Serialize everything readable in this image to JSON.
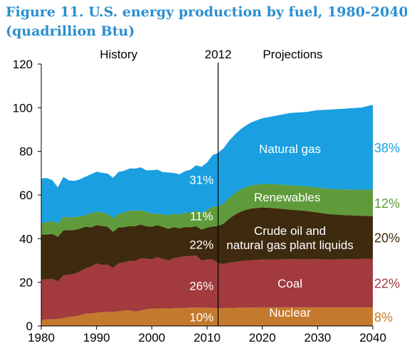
{
  "title": {
    "line1": "Figure 11. U.S. energy production by fuel, 1980-2040",
    "line2": "(quadrillion Btu)"
  },
  "chart_data": {
    "type": "area",
    "title": "Figure 11. U.S. energy production by fuel, 1980-2040 (quadrillion Btu)",
    "xlabel": "",
    "ylabel": "",
    "xlim": [
      1980,
      2040
    ],
    "ylim": [
      0,
      120
    ],
    "x_ticks": [
      "1980",
      "1990",
      "2000",
      "2010",
      "2020",
      "2030",
      "2040"
    ],
    "y_ticks": [
      "0",
      "20",
      "40",
      "60",
      "80",
      "100",
      "120"
    ],
    "grid": false,
    "stacked": true,
    "divider": {
      "x": 2012,
      "label": "2012",
      "left_label": "History",
      "right_label": "Projections"
    },
    "x": [
      1980,
      1981,
      1982,
      1983,
      1984,
      1985,
      1986,
      1987,
      1988,
      1989,
      1990,
      1991,
      1992,
      1993,
      1994,
      1995,
      1996,
      1997,
      1998,
      1999,
      2000,
      2001,
      2002,
      2003,
      2004,
      2005,
      2006,
      2007,
      2008,
      2009,
      2010,
      2011,
      2012,
      2013,
      2014,
      2015,
      2016,
      2017,
      2018,
      2020,
      2022,
      2025,
      2028,
      2030,
      2032,
      2035,
      2038,
      2040
    ],
    "series": [
      {
        "name": "Nuclear",
        "color": "#c47a2c",
        "share_2012": "10%",
        "share_2040": "8%",
        "values": [
          2.7,
          3.0,
          3.1,
          3.2,
          3.6,
          4.1,
          4.4,
          4.9,
          5.6,
          5.7,
          6.1,
          6.4,
          6.5,
          6.4,
          6.7,
          7.1,
          7.1,
          6.6,
          7.1,
          7.6,
          7.9,
          8.0,
          8.1,
          7.9,
          8.2,
          8.2,
          8.2,
          8.5,
          8.4,
          8.4,
          8.4,
          8.3,
          8.1,
          8.2,
          8.3,
          8.3,
          8.4,
          8.4,
          8.4,
          8.5,
          8.5,
          8.5,
          8.5,
          8.5,
          8.5,
          8.5,
          8.5,
          8.5
        ]
      },
      {
        "name": "Coal",
        "color": "#a23a3e",
        "share_2012": "26%",
        "share_2040": "22%",
        "values": [
          18.6,
          18.4,
          18.6,
          17.2,
          19.7,
          19.3,
          19.5,
          20.1,
          20.7,
          21.4,
          22.5,
          21.6,
          21.6,
          20.2,
          22.1,
          22.0,
          22.7,
          23.2,
          23.9,
          23.2,
          22.7,
          23.5,
          22.6,
          22.1,
          22.9,
          23.2,
          23.8,
          23.5,
          23.9,
          21.6,
          22.0,
          22.2,
          20.7,
          20.2,
          20.7,
          21.0,
          21.3,
          21.5,
          21.7,
          21.9,
          22.0,
          22.1,
          22.2,
          22.1,
          22.0,
          22.1,
          22.2,
          22.3
        ]
      },
      {
        "name": "Crude oil and natural gas plant liquids",
        "color": "#3e2a0e",
        "share_2012": "22%",
        "share_2040": "20%",
        "values": [
          20.5,
          20.5,
          20.5,
          20.5,
          20.5,
          20.5,
          20.1,
          19.6,
          19.2,
          18.1,
          17.6,
          17.8,
          17.4,
          16.5,
          16.4,
          16.2,
          16.0,
          15.9,
          15.5,
          14.9,
          14.9,
          14.7,
          14.7,
          14.5,
          14.2,
          13.3,
          13.3,
          13.3,
          13.4,
          14.2,
          14.7,
          15.1,
          17.1,
          18.5,
          20.2,
          21.6,
          22.6,
          23.3,
          23.7,
          23.9,
          23.5,
          22.7,
          22.0,
          21.4,
          20.8,
          20.2,
          19.8,
          19.6
        ]
      },
      {
        "name": "Renewables",
        "color": "#5f9b3a",
        "share_2012": "11%",
        "share_2040": "12%",
        "values": [
          5.3,
          5.7,
          5.9,
          6.0,
          6.3,
          5.8,
          6.0,
          5.5,
          5.3,
          6.5,
          6.2,
          6.2,
          5.9,
          6.2,
          6.1,
          6.7,
          7.1,
          7.0,
          6.6,
          6.6,
          6.1,
          5.2,
          5.7,
          6.2,
          6.2,
          6.2,
          6.6,
          6.5,
          7.2,
          7.6,
          8.0,
          9.1,
          8.8,
          9.2,
          9.6,
          9.9,
          10.2,
          10.4,
          10.6,
          10.8,
          11.0,
          11.2,
          11.3,
          11.4,
          11.5,
          11.7,
          11.9,
          12.1
        ]
      },
      {
        "name": "Natural gas",
        "color": "#1a9fe0",
        "share_2012": "31%",
        "share_2040": "38%",
        "values": [
          20.5,
          20.2,
          18.7,
          16.6,
          18.2,
          17.0,
          16.5,
          17.1,
          17.6,
          17.8,
          18.3,
          18.2,
          18.4,
          18.6,
          19.3,
          19.1,
          19.3,
          19.4,
          19.6,
          19.0,
          19.7,
          20.2,
          19.4,
          19.6,
          18.6,
          18.6,
          19.0,
          19.8,
          20.7,
          21.1,
          21.8,
          23.6,
          24.6,
          25.4,
          26.1,
          26.8,
          27.5,
          28.2,
          28.9,
          30.1,
          31.1,
          33.1,
          34.1,
          35.5,
          36.3,
          37.1,
          37.7,
          38.8
        ]
      }
    ]
  }
}
